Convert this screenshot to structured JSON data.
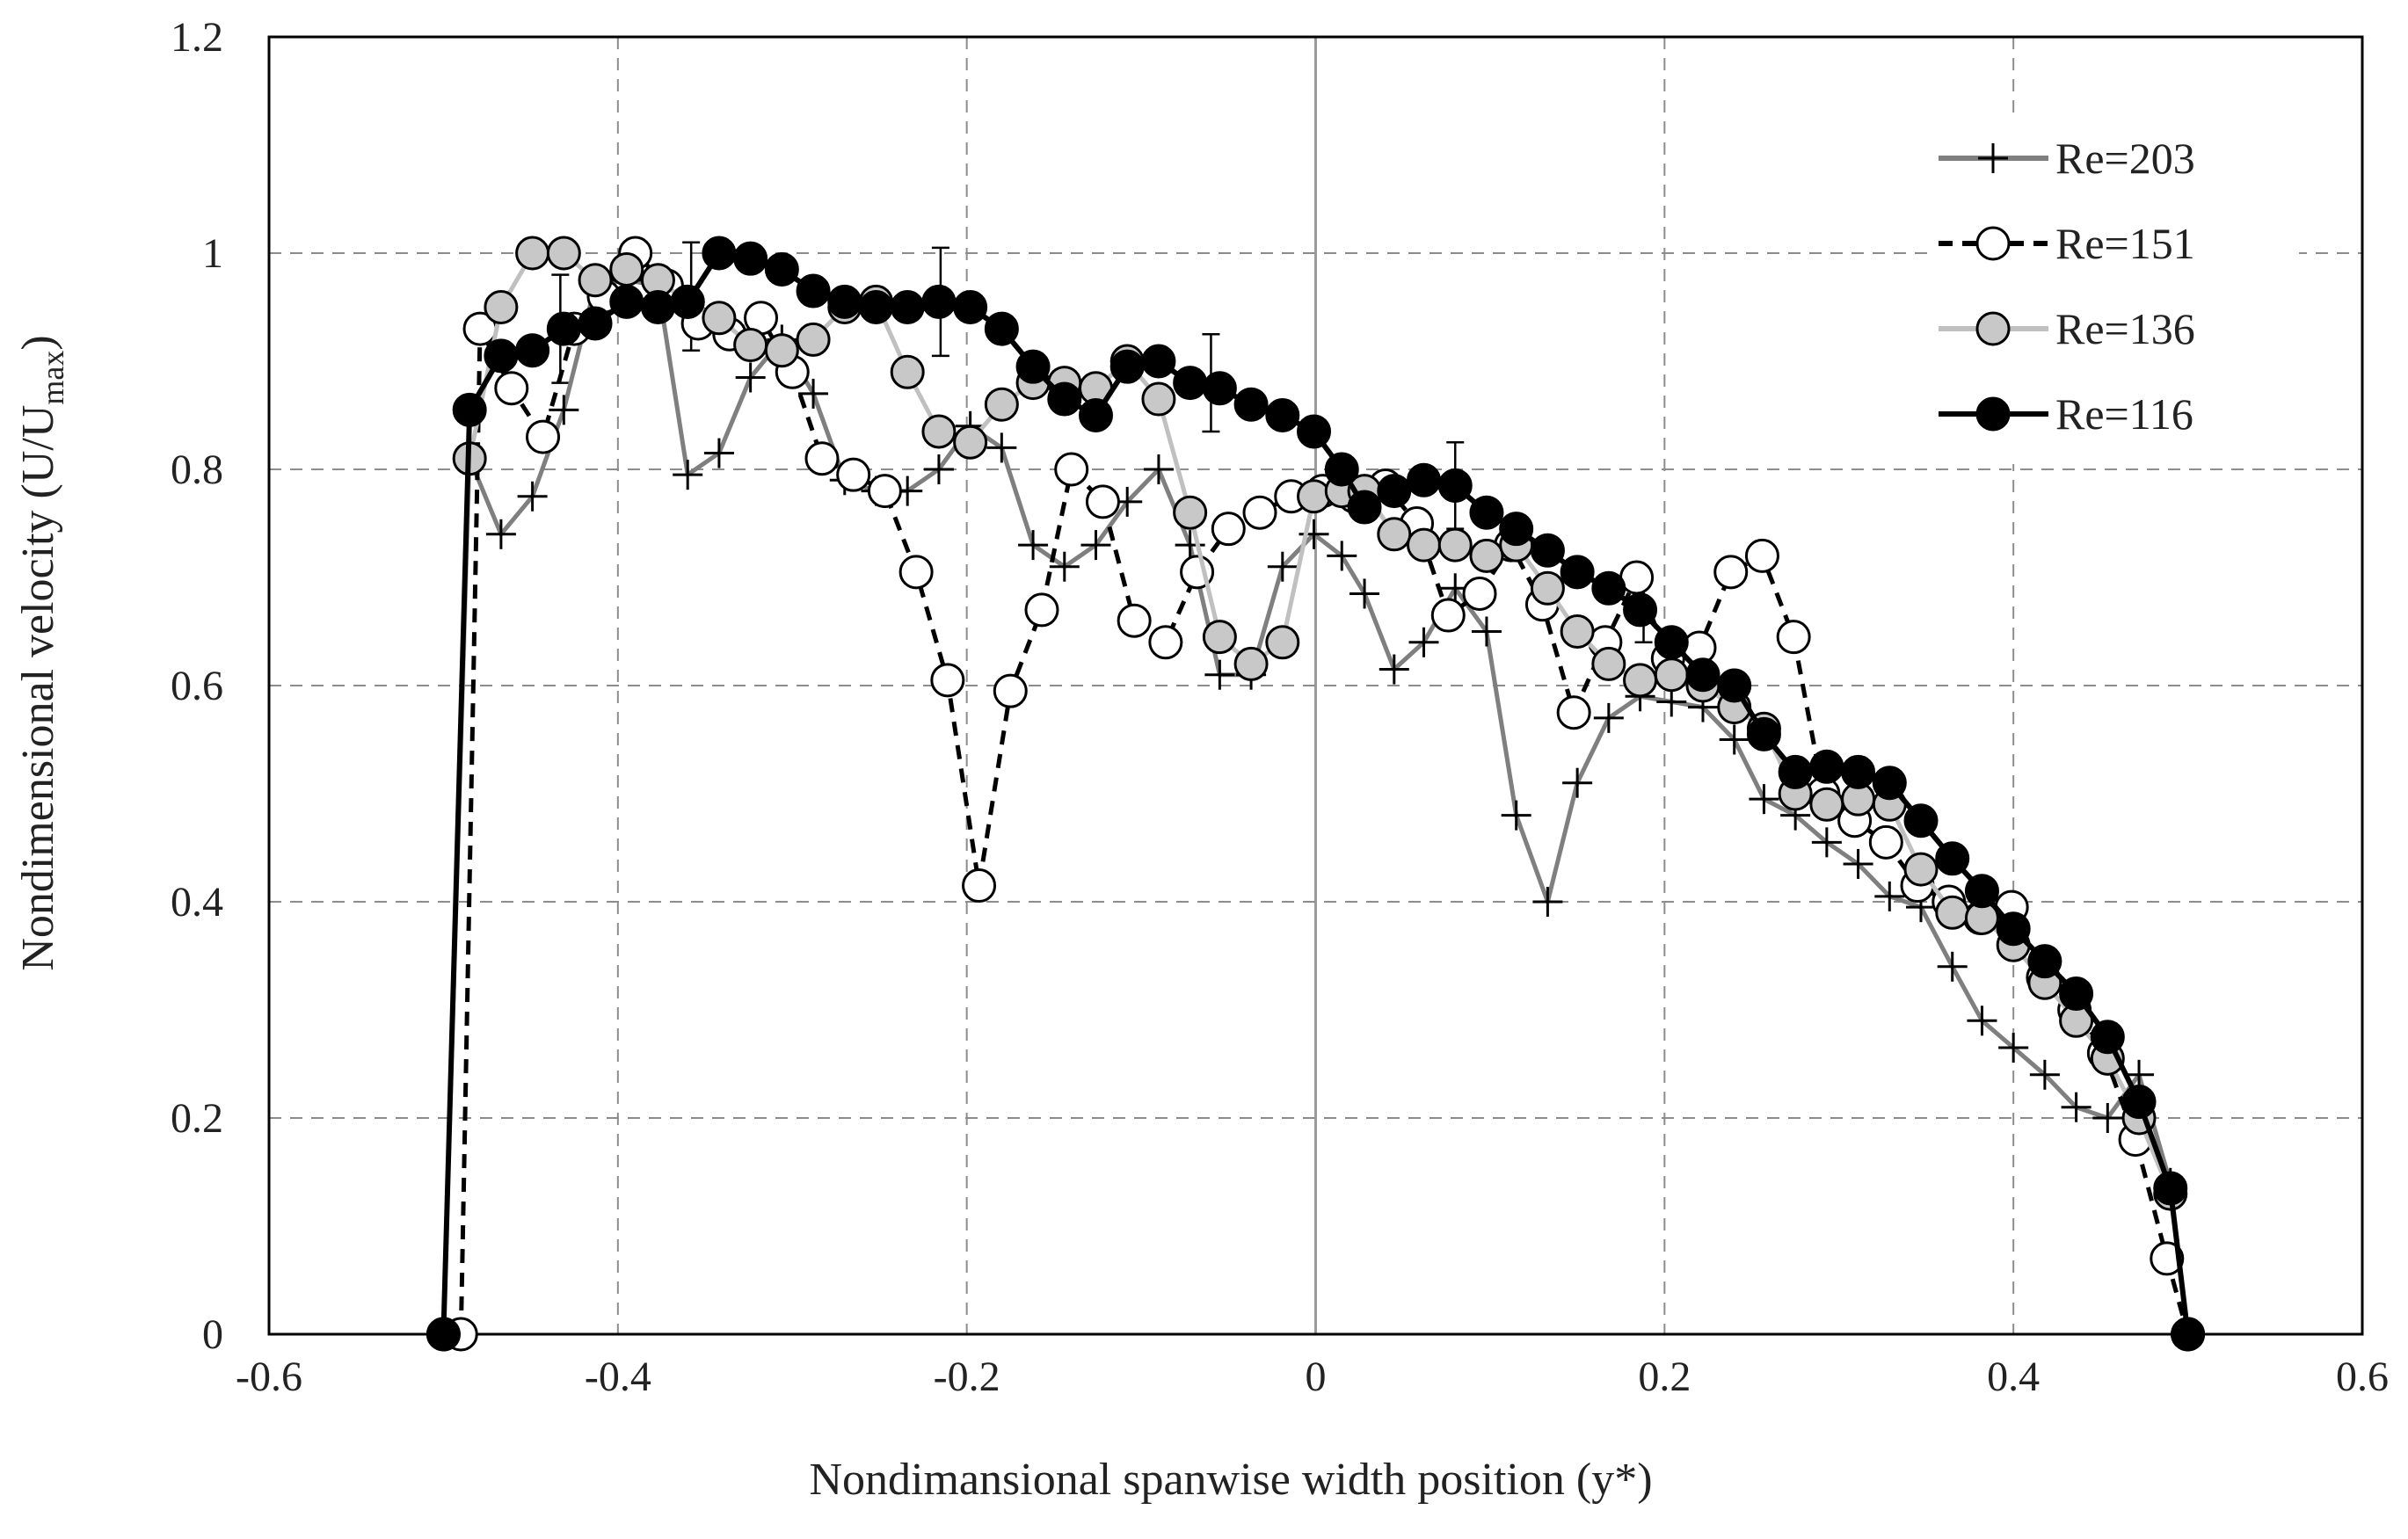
{
  "chart_data": {
    "type": "line",
    "title": "",
    "xlabel": "Nondimansional spanwise width position (y*)",
    "ylabel_main": "Nondimensional  velocity (U/U",
    "ylabel_sub": "max",
    "ylabel_close": ")",
    "xlim": [
      -0.6,
      0.6
    ],
    "ylim": [
      0,
      1.2
    ],
    "xticks": [
      "-0.6",
      "-0.4",
      "-0.2",
      "0",
      "0.2",
      "0.4",
      "0.6"
    ],
    "yticks": [
      "0",
      "0.2",
      "0.4",
      "0.6",
      "0.8",
      "1",
      "1.2"
    ],
    "grid": true,
    "legend_position": "top-right",
    "series": [
      {
        "name": "Re=203",
        "color": "#7f7f7f",
        "marker": "plus",
        "dash": "solid",
        "x": [
          -0.485,
          -0.467,
          -0.449,
          -0.431,
          -0.413,
          -0.395,
          -0.377,
          -0.36,
          -0.342,
          -0.324,
          -0.306,
          -0.288,
          -0.27,
          -0.252,
          -0.234,
          -0.216,
          -0.198,
          -0.18,
          -0.162,
          -0.144,
          -0.126,
          -0.108,
          -0.09,
          -0.072,
          -0.055,
          -0.037,
          -0.019,
          -0.001,
          0.015,
          0.028,
          0.045,
          0.062,
          0.08,
          0.098,
          0.115,
          0.133,
          0.15,
          0.168,
          0.186,
          0.204,
          0.222,
          0.24,
          0.257,
          0.275,
          0.293,
          0.311,
          0.329,
          0.347,
          0.365,
          0.382,
          0.4,
          0.418,
          0.436,
          0.454,
          0.472,
          0.49,
          0.5
        ],
        "y": [
          0.81,
          0.74,
          0.775,
          0.855,
          0.97,
          0.975,
          0.97,
          0.795,
          0.815,
          0.885,
          0.92,
          0.87,
          0.79,
          0.78,
          0.78,
          0.8,
          0.84,
          0.82,
          0.73,
          0.71,
          0.73,
          0.77,
          0.8,
          0.73,
          0.61,
          0.61,
          0.71,
          0.74,
          0.72,
          0.685,
          0.615,
          0.64,
          0.69,
          0.65,
          0.48,
          0.4,
          0.51,
          0.57,
          0.59,
          0.585,
          0.58,
          0.55,
          0.495,
          0.48,
          0.455,
          0.435,
          0.405,
          0.395,
          0.34,
          0.29,
          0.265,
          0.24,
          0.21,
          0.2,
          0.24,
          0.14,
          0.0
        ]
      },
      {
        "name": "Re=151",
        "color": "#000000",
        "marker": "open-circle",
        "dash": "dashed",
        "x": [
          -0.49,
          -0.479,
          -0.461,
          -0.443,
          -0.425,
          -0.408,
          -0.39,
          -0.372,
          -0.354,
          -0.336,
          -0.318,
          -0.3,
          -0.283,
          -0.265,
          -0.247,
          -0.229,
          -0.211,
          -0.193,
          -0.175,
          -0.157,
          -0.14,
          -0.122,
          -0.104,
          -0.086,
          -0.068,
          -0.05,
          -0.032,
          -0.014,
          0.004,
          0.022,
          0.04,
          0.058,
          0.076,
          0.094,
          0.112,
          0.13,
          0.148,
          0.166,
          0.184,
          0.202,
          0.22,
          0.238,
          0.256,
          0.274,
          0.291,
          0.309,
          0.327,
          0.345,
          0.363,
          0.381,
          0.399,
          0.417,
          0.435,
          0.452,
          0.47,
          0.488,
          0.5
        ],
        "y": [
          0.0,
          0.93,
          0.875,
          0.83,
          0.93,
          0.96,
          1.0,
          0.97,
          0.935,
          0.925,
          0.94,
          0.89,
          0.81,
          0.795,
          0.78,
          0.705,
          0.605,
          0.415,
          0.595,
          0.67,
          0.8,
          0.77,
          0.66,
          0.64,
          0.705,
          0.745,
          0.76,
          0.775,
          0.78,
          0.775,
          0.785,
          0.75,
          0.665,
          0.685,
          0.73,
          0.675,
          0.575,
          0.64,
          0.7,
          0.625,
          0.635,
          0.705,
          0.72,
          0.645,
          0.5,
          0.475,
          0.455,
          0.415,
          0.4,
          0.385,
          0.395,
          0.33,
          0.3,
          0.26,
          0.18,
          0.07,
          0.0
        ]
      },
      {
        "name": "Re=136",
        "color": "#c0c0c0",
        "marker": "gray-circle",
        "dash": "solid",
        "x": [
          -0.5,
          -0.485,
          -0.467,
          -0.449,
          -0.431,
          -0.413,
          -0.395,
          -0.377,
          -0.36,
          -0.342,
          -0.324,
          -0.306,
          -0.288,
          -0.27,
          -0.252,
          -0.234,
          -0.216,
          -0.198,
          -0.18,
          -0.162,
          -0.144,
          -0.126,
          -0.108,
          -0.09,
          -0.072,
          -0.055,
          -0.037,
          -0.019,
          -0.001,
          0.015,
          0.028,
          0.045,
          0.062,
          0.08,
          0.098,
          0.115,
          0.133,
          0.15,
          0.168,
          0.186,
          0.204,
          0.222,
          0.24,
          0.257,
          0.275,
          0.293,
          0.311,
          0.329,
          0.347,
          0.365,
          0.382,
          0.4,
          0.418,
          0.436,
          0.454,
          0.472,
          0.49,
          0.5
        ],
        "y": [
          0.0,
          0.81,
          0.95,
          1.0,
          1.0,
          0.975,
          0.985,
          0.975,
          0.955,
          0.94,
          0.915,
          0.91,
          0.92,
          0.95,
          0.955,
          0.89,
          0.835,
          0.825,
          0.86,
          0.88,
          0.88,
          0.875,
          0.9,
          0.865,
          0.76,
          0.645,
          0.62,
          0.64,
          0.775,
          0.78,
          0.78,
          0.74,
          0.73,
          0.73,
          0.72,
          0.73,
          0.69,
          0.65,
          0.62,
          0.605,
          0.61,
          0.6,
          0.58,
          0.56,
          0.5,
          0.49,
          0.495,
          0.49,
          0.43,
          0.39,
          0.385,
          0.36,
          0.325,
          0.29,
          0.255,
          0.2,
          0.13,
          0.0
        ]
      },
      {
        "name": "Re=116",
        "color": "#000000",
        "marker": "filled-circle",
        "dash": "solid",
        "x": [
          -0.5,
          -0.485,
          -0.467,
          -0.449,
          -0.431,
          -0.413,
          -0.395,
          -0.377,
          -0.36,
          -0.342,
          -0.324,
          -0.306,
          -0.288,
          -0.27,
          -0.252,
          -0.234,
          -0.216,
          -0.198,
          -0.18,
          -0.162,
          -0.144,
          -0.126,
          -0.108,
          -0.09,
          -0.072,
          -0.055,
          -0.037,
          -0.019,
          -0.001,
          0.015,
          0.028,
          0.045,
          0.062,
          0.08,
          0.098,
          0.115,
          0.133,
          0.15,
          0.168,
          0.186,
          0.204,
          0.222,
          0.24,
          0.257,
          0.275,
          0.293,
          0.311,
          0.329,
          0.347,
          0.365,
          0.382,
          0.4,
          0.418,
          0.436,
          0.454,
          0.472,
          0.49,
          0.5
        ],
        "y": [
          0.0,
          0.855,
          0.905,
          0.91,
          0.93,
          0.935,
          0.955,
          0.95,
          0.955,
          1.0,
          0.995,
          0.985,
          0.965,
          0.955,
          0.95,
          0.95,
          0.955,
          0.95,
          0.93,
          0.895,
          0.865,
          0.85,
          0.895,
          0.9,
          0.88,
          0.875,
          0.86,
          0.85,
          0.835,
          0.8,
          0.765,
          0.78,
          0.79,
          0.785,
          0.76,
          0.745,
          0.725,
          0.705,
          0.69,
          0.67,
          0.64,
          0.61,
          0.6,
          0.555,
          0.52,
          0.525,
          0.52,
          0.51,
          0.475,
          0.44,
          0.41,
          0.375,
          0.345,
          0.315,
          0.275,
          0.215,
          0.135,
          0.0
        ]
      }
    ],
    "error_bars": [
      {
        "x": -0.433,
        "y": 0.93,
        "err": 0.05
      },
      {
        "x": -0.358,
        "y": 0.96,
        "err": 0.05
      },
      {
        "x": -0.215,
        "y": 0.955,
        "err": 0.05
      },
      {
        "x": -0.06,
        "y": 0.88,
        "err": 0.045
      },
      {
        "x": 0.08,
        "y": 0.785,
        "err": 0.04
      },
      {
        "x": 0.188,
        "y": 0.67,
        "err": 0.03
      }
    ]
  }
}
